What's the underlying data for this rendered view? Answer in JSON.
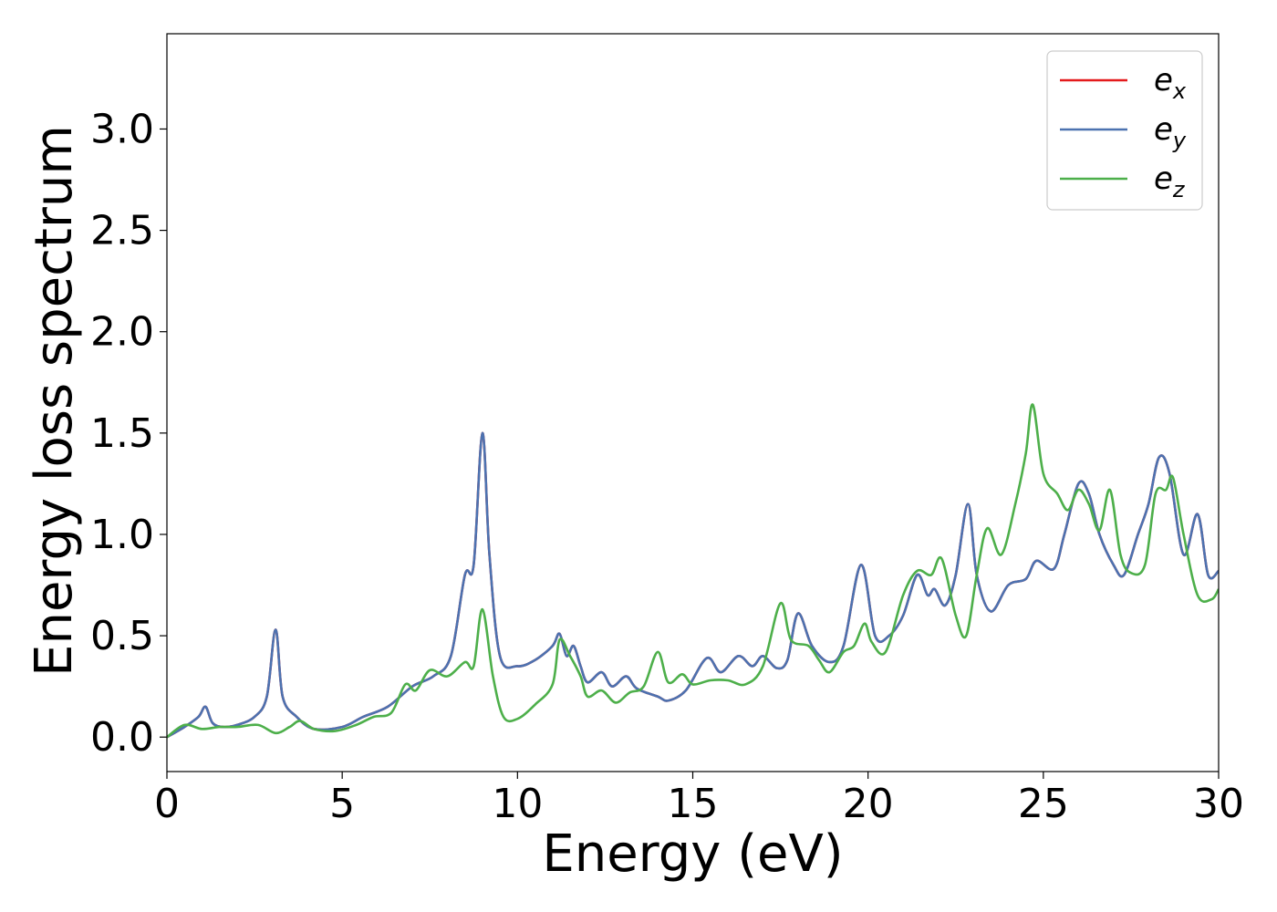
{
  "chart_data": {
    "type": "line",
    "xlabel": "Energy (eV)",
    "ylabel": "Energy loss spectrum",
    "xlim": [
      0,
      30
    ],
    "ylim": [
      -0.17,
      3.47
    ],
    "xticks": [
      "0",
      "5",
      "10",
      "15",
      "20",
      "25",
      "30"
    ],
    "yticks": [
      "0.0",
      "0.5",
      "1.0",
      "1.5",
      "2.0",
      "2.5",
      "3.0"
    ],
    "grid": false,
    "legend_position": "top-right",
    "series": [
      {
        "name": "e",
        "subscript": "x",
        "color": "#e41a1c",
        "points": [
          [
            0,
            0
          ],
          [
            0.5,
            0.05
          ],
          [
            0.9,
            0.1
          ],
          [
            1.1,
            0.15
          ],
          [
            1.3,
            0.07
          ],
          [
            1.6,
            0.05
          ],
          [
            2.0,
            0.06
          ],
          [
            2.5,
            0.1
          ],
          [
            2.85,
            0.2
          ],
          [
            3.1,
            0.53
          ],
          [
            3.3,
            0.2
          ],
          [
            3.7,
            0.1
          ],
          [
            4.2,
            0.04
          ],
          [
            5.0,
            0.05
          ],
          [
            5.6,
            0.1
          ],
          [
            6.3,
            0.15
          ],
          [
            7.0,
            0.25
          ],
          [
            7.6,
            0.3
          ],
          [
            8.1,
            0.4
          ],
          [
            8.5,
            0.8
          ],
          [
            8.75,
            0.85
          ],
          [
            9.0,
            1.5
          ],
          [
            9.2,
            0.9
          ],
          [
            9.5,
            0.4
          ],
          [
            10.0,
            0.35
          ],
          [
            10.5,
            0.38
          ],
          [
            11.0,
            0.45
          ],
          [
            11.2,
            0.51
          ],
          [
            11.4,
            0.4
          ],
          [
            11.6,
            0.45
          ],
          [
            11.8,
            0.35
          ],
          [
            12.0,
            0.27
          ],
          [
            12.4,
            0.32
          ],
          [
            12.7,
            0.25
          ],
          [
            13.1,
            0.3
          ],
          [
            13.4,
            0.24
          ],
          [
            14.0,
            0.2
          ],
          [
            14.3,
            0.18
          ],
          [
            14.8,
            0.23
          ],
          [
            15.4,
            0.39
          ],
          [
            15.8,
            0.32
          ],
          [
            16.3,
            0.4
          ],
          [
            16.7,
            0.35
          ],
          [
            17.0,
            0.4
          ],
          [
            17.4,
            0.34
          ],
          [
            17.7,
            0.38
          ],
          [
            18.0,
            0.61
          ],
          [
            18.4,
            0.45
          ],
          [
            18.9,
            0.37
          ],
          [
            19.3,
            0.45
          ],
          [
            19.8,
            0.85
          ],
          [
            20.2,
            0.5
          ],
          [
            20.6,
            0.5
          ],
          [
            21.0,
            0.6
          ],
          [
            21.4,
            0.8
          ],
          [
            21.7,
            0.7
          ],
          [
            21.9,
            0.73
          ],
          [
            22.2,
            0.65
          ],
          [
            22.5,
            0.8
          ],
          [
            22.85,
            1.15
          ],
          [
            23.1,
            0.8
          ],
          [
            23.5,
            0.62
          ],
          [
            24.0,
            0.75
          ],
          [
            24.5,
            0.78
          ],
          [
            24.8,
            0.87
          ],
          [
            25.3,
            0.83
          ],
          [
            25.6,
            1.0
          ],
          [
            26.0,
            1.25
          ],
          [
            26.3,
            1.2
          ],
          [
            26.6,
            1.0
          ],
          [
            27.0,
            0.85
          ],
          [
            27.3,
            0.8
          ],
          [
            27.7,
            1.0
          ],
          [
            28.0,
            1.15
          ],
          [
            28.3,
            1.38
          ],
          [
            28.6,
            1.3
          ],
          [
            29.0,
            0.9
          ],
          [
            29.4,
            1.1
          ],
          [
            29.7,
            0.8
          ],
          [
            30.0,
            0.82
          ]
        ]
      },
      {
        "name": "e",
        "subscript": "y",
        "color": "#4c72b0",
        "points": [
          [
            0,
            0
          ],
          [
            0.5,
            0.05
          ],
          [
            0.9,
            0.1
          ],
          [
            1.1,
            0.15
          ],
          [
            1.3,
            0.07
          ],
          [
            1.6,
            0.05
          ],
          [
            2.0,
            0.06
          ],
          [
            2.5,
            0.1
          ],
          [
            2.85,
            0.2
          ],
          [
            3.1,
            0.53
          ],
          [
            3.3,
            0.2
          ],
          [
            3.7,
            0.1
          ],
          [
            4.2,
            0.04
          ],
          [
            5.0,
            0.05
          ],
          [
            5.6,
            0.1
          ],
          [
            6.3,
            0.15
          ],
          [
            7.0,
            0.25
          ],
          [
            7.6,
            0.3
          ],
          [
            8.1,
            0.4
          ],
          [
            8.5,
            0.8
          ],
          [
            8.75,
            0.85
          ],
          [
            9.0,
            1.5
          ],
          [
            9.2,
            0.9
          ],
          [
            9.5,
            0.4
          ],
          [
            10.0,
            0.35
          ],
          [
            10.5,
            0.38
          ],
          [
            11.0,
            0.45
          ],
          [
            11.2,
            0.51
          ],
          [
            11.4,
            0.4
          ],
          [
            11.6,
            0.45
          ],
          [
            11.8,
            0.35
          ],
          [
            12.0,
            0.27
          ],
          [
            12.4,
            0.32
          ],
          [
            12.7,
            0.25
          ],
          [
            13.1,
            0.3
          ],
          [
            13.4,
            0.24
          ],
          [
            14.0,
            0.2
          ],
          [
            14.3,
            0.18
          ],
          [
            14.8,
            0.23
          ],
          [
            15.4,
            0.39
          ],
          [
            15.8,
            0.32
          ],
          [
            16.3,
            0.4
          ],
          [
            16.7,
            0.35
          ],
          [
            17.0,
            0.4
          ],
          [
            17.4,
            0.34
          ],
          [
            17.7,
            0.38
          ],
          [
            18.0,
            0.61
          ],
          [
            18.4,
            0.45
          ],
          [
            18.9,
            0.37
          ],
          [
            19.3,
            0.45
          ],
          [
            19.8,
            0.85
          ],
          [
            20.2,
            0.5
          ],
          [
            20.6,
            0.5
          ],
          [
            21.0,
            0.6
          ],
          [
            21.4,
            0.8
          ],
          [
            21.7,
            0.7
          ],
          [
            21.9,
            0.73
          ],
          [
            22.2,
            0.65
          ],
          [
            22.5,
            0.8
          ],
          [
            22.85,
            1.15
          ],
          [
            23.1,
            0.8
          ],
          [
            23.5,
            0.62
          ],
          [
            24.0,
            0.75
          ],
          [
            24.5,
            0.78
          ],
          [
            24.8,
            0.87
          ],
          [
            25.3,
            0.83
          ],
          [
            25.6,
            1.0
          ],
          [
            26.0,
            1.25
          ],
          [
            26.3,
            1.2
          ],
          [
            26.6,
            1.0
          ],
          [
            27.0,
            0.85
          ],
          [
            27.3,
            0.8
          ],
          [
            27.7,
            1.0
          ],
          [
            28.0,
            1.15
          ],
          [
            28.3,
            1.38
          ],
          [
            28.6,
            1.3
          ],
          [
            29.0,
            0.9
          ],
          [
            29.4,
            1.1
          ],
          [
            29.7,
            0.8
          ],
          [
            30.0,
            0.82
          ]
        ]
      },
      {
        "name": "e",
        "subscript": "z",
        "color": "#4daf4a",
        "points": [
          [
            0,
            0
          ],
          [
            0.5,
            0.06
          ],
          [
            1.0,
            0.04
          ],
          [
            1.5,
            0.05
          ],
          [
            2.0,
            0.05
          ],
          [
            2.6,
            0.06
          ],
          [
            3.1,
            0.02
          ],
          [
            3.5,
            0.05
          ],
          [
            3.8,
            0.08
          ],
          [
            4.2,
            0.04
          ],
          [
            4.8,
            0.03
          ],
          [
            5.4,
            0.06
          ],
          [
            5.9,
            0.1
          ],
          [
            6.4,
            0.12
          ],
          [
            6.8,
            0.26
          ],
          [
            7.1,
            0.23
          ],
          [
            7.5,
            0.33
          ],
          [
            8.0,
            0.3
          ],
          [
            8.5,
            0.37
          ],
          [
            8.75,
            0.35
          ],
          [
            9.0,
            0.63
          ],
          [
            9.3,
            0.3
          ],
          [
            9.6,
            0.1
          ],
          [
            10.0,
            0.09
          ],
          [
            10.5,
            0.16
          ],
          [
            11.0,
            0.26
          ],
          [
            11.2,
            0.48
          ],
          [
            11.5,
            0.4
          ],
          [
            11.8,
            0.3
          ],
          [
            12.0,
            0.2
          ],
          [
            12.4,
            0.23
          ],
          [
            12.8,
            0.17
          ],
          [
            13.2,
            0.22
          ],
          [
            13.6,
            0.25
          ],
          [
            14.0,
            0.42
          ],
          [
            14.3,
            0.27
          ],
          [
            14.7,
            0.31
          ],
          [
            15.0,
            0.26
          ],
          [
            15.5,
            0.28
          ],
          [
            16.0,
            0.28
          ],
          [
            16.5,
            0.26
          ],
          [
            17.0,
            0.35
          ],
          [
            17.5,
            0.66
          ],
          [
            17.8,
            0.48
          ],
          [
            18.3,
            0.45
          ],
          [
            18.6,
            0.38
          ],
          [
            18.9,
            0.32
          ],
          [
            19.3,
            0.42
          ],
          [
            19.6,
            0.45
          ],
          [
            19.9,
            0.56
          ],
          [
            20.1,
            0.47
          ],
          [
            20.5,
            0.42
          ],
          [
            21.0,
            0.7
          ],
          [
            21.4,
            0.82
          ],
          [
            21.8,
            0.8
          ],
          [
            22.1,
            0.88
          ],
          [
            22.5,
            0.6
          ],
          [
            22.8,
            0.5
          ],
          [
            23.1,
            0.8
          ],
          [
            23.4,
            1.03
          ],
          [
            23.8,
            0.9
          ],
          [
            24.2,
            1.15
          ],
          [
            24.5,
            1.4
          ],
          [
            24.7,
            1.64
          ],
          [
            25.0,
            1.3
          ],
          [
            25.4,
            1.2
          ],
          [
            25.7,
            1.12
          ],
          [
            26.0,
            1.22
          ],
          [
            26.3,
            1.15
          ],
          [
            26.6,
            1.02
          ],
          [
            26.9,
            1.22
          ],
          [
            27.2,
            0.9
          ],
          [
            27.5,
            0.81
          ],
          [
            27.9,
            0.85
          ],
          [
            28.2,
            1.2
          ],
          [
            28.5,
            1.22
          ],
          [
            28.7,
            1.28
          ],
          [
            29.0,
            1.0
          ],
          [
            29.4,
            0.7
          ],
          [
            29.8,
            0.68
          ],
          [
            30.0,
            0.73
          ]
        ]
      }
    ]
  }
}
